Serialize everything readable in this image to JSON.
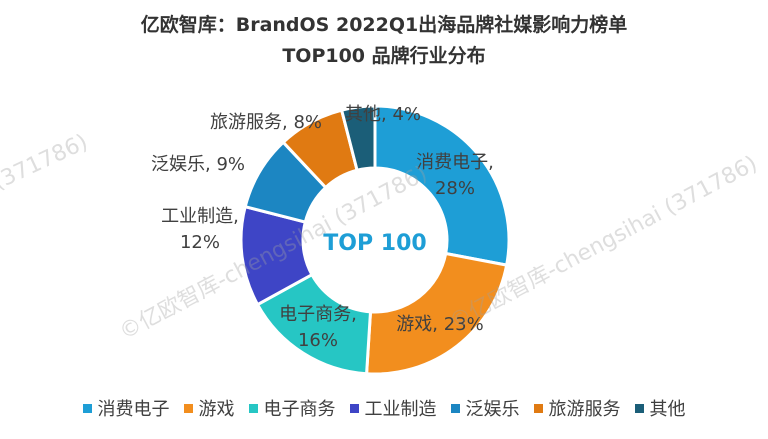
{
  "title": {
    "line1": "亿欧智库：BrandOS 2022Q1出海品牌社媒影响力榜单",
    "line2": "TOP100 品牌行业分布"
  },
  "watermarks": [
    "(371786)",
    "©亿欧智库-chengsihai (371786)",
    "©亿欧智库-chengsihai (371786)"
  ],
  "chart_data": {
    "type": "pie",
    "center_label": "TOP 100",
    "categories": [
      "消费电子",
      "游戏",
      "电子商务",
      "工业制造",
      "泛娱乐",
      "旅游服务",
      "其他"
    ],
    "values": [
      28,
      23,
      16,
      12,
      9,
      8,
      4
    ],
    "unit": "%",
    "data_labels": [
      "消费电子, 28%",
      "游戏, 23%",
      "电子商务, 16%",
      "工业制造, 12%",
      "泛娱乐, 9%",
      "旅游服务, 8%",
      "其他, 4%"
    ],
    "colors": [
      "#1E9ED6",
      "#F28E1E",
      "#26C6C4",
      "#3E45C6",
      "#1C86C2",
      "#E07A12",
      "#1B5E78"
    ],
    "legend_position": "bottom"
  }
}
